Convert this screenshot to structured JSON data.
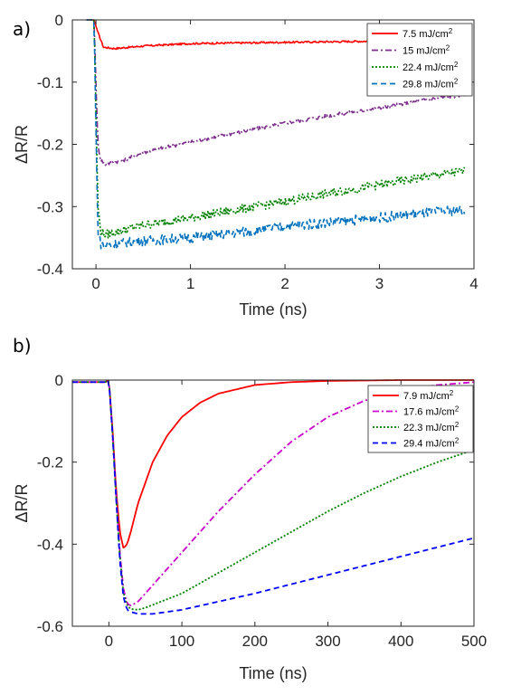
{
  "chart_data": [
    {
      "panel_label": "a)",
      "type": "line",
      "xlabel": "Time (ns)",
      "ylabel": "ΔR/R",
      "xlim": [
        -0.25,
        4
      ],
      "ylim": [
        -0.4,
        0
      ],
      "xticks": [
        0,
        1,
        2,
        3,
        4
      ],
      "yticks": [
        0,
        -0.1,
        -0.2,
        -0.3,
        -0.4
      ],
      "xtick_labels": [
        "0",
        "1",
        "2",
        "3",
        "4"
      ],
      "ytick_labels": [
        "0",
        "-0.1",
        "-0.2",
        "-0.3",
        "-0.4"
      ],
      "legend_position": "top-right",
      "series": [
        {
          "name": "7.5 mJ/cm",
          "name_sup": "2",
          "color": "#ff0000",
          "dash": "solid",
          "noise": 0.0015,
          "x": [
            -0.1,
            -0.02,
            0.02,
            0.08,
            0.2,
            0.5,
            1.0,
            2.0,
            3.0,
            3.9
          ],
          "y": [
            0.0,
            0.0,
            -0.02,
            -0.044,
            -0.046,
            -0.042,
            -0.038,
            -0.036,
            -0.034,
            -0.033
          ]
        },
        {
          "name": "15 mJ/cm",
          "name_sup": "2",
          "color": "#7e2f8e",
          "dash": "dashdot",
          "noise": 0.003,
          "x": [
            -0.1,
            -0.02,
            0.0,
            0.02,
            0.05,
            0.1,
            0.3,
            0.5,
            1.0,
            1.5,
            2.0,
            2.5,
            3.0,
            3.5,
            3.9
          ],
          "y": [
            0.0,
            0.0,
            -0.1,
            -0.2,
            -0.225,
            -0.232,
            -0.225,
            -0.213,
            -0.196,
            -0.181,
            -0.166,
            -0.153,
            -0.142,
            -0.128,
            -0.12
          ]
        },
        {
          "name": "22.4 mJ/cm",
          "name_sup": "2",
          "color": "#008000",
          "dash": "dotted",
          "noise": 0.007,
          "x": [
            -0.1,
            -0.02,
            0.0,
            0.02,
            0.05,
            0.1,
            0.5,
            1.0,
            1.5,
            2.0,
            2.5,
            3.0,
            3.5,
            3.9
          ],
          "y": [
            0.0,
            0.0,
            -0.15,
            -0.3,
            -0.34,
            -0.345,
            -0.33,
            -0.318,
            -0.305,
            -0.292,
            -0.278,
            -0.265,
            -0.252,
            -0.243
          ]
        },
        {
          "name": "29.8 mJ/cm",
          "name_sup": "2",
          "color": "#0072bd",
          "dash": "dashed",
          "noise": 0.008,
          "x": [
            -0.1,
            -0.02,
            0.0,
            0.02,
            0.05,
            0.1,
            0.5,
            1.0,
            1.5,
            2.0,
            2.5,
            3.0,
            3.5,
            3.9
          ],
          "y": [
            0.0,
            0.0,
            -0.18,
            -0.34,
            -0.36,
            -0.362,
            -0.355,
            -0.35,
            -0.342,
            -0.332,
            -0.325,
            -0.318,
            -0.31,
            -0.305
          ]
        }
      ]
    },
    {
      "panel_label": "b)",
      "type": "line",
      "xlabel": "Time (ns)",
      "ylabel": "ΔR/R",
      "xlim": [
        -50,
        500
      ],
      "ylim": [
        -0.6,
        0
      ],
      "xticks": [
        0,
        100,
        200,
        300,
        400,
        500
      ],
      "yticks": [
        0,
        -0.2,
        -0.4,
        -0.6
      ],
      "xtick_labels": [
        "0",
        "100",
        "200",
        "300",
        "400",
        "500"
      ],
      "ytick_labels": [
        "0",
        "-0.2",
        "-0.4",
        "-0.6"
      ],
      "legend_position": "top-right",
      "series": [
        {
          "name": "7.9 mJ/cm",
          "name_sup": "2",
          "color": "#ff0000",
          "dash": "solid",
          "noise": 0,
          "x": [
            -50,
            -5,
            0,
            5,
            10,
            15,
            20,
            25,
            30,
            40,
            60,
            80,
            100,
            125,
            150,
            200,
            250,
            300,
            400,
            500
          ],
          "y": [
            -0.005,
            -0.005,
            0.0,
            -0.12,
            -0.27,
            -0.37,
            -0.41,
            -0.4,
            -0.37,
            -0.3,
            -0.2,
            -0.135,
            -0.09,
            -0.055,
            -0.033,
            -0.012,
            -0.005,
            -0.002,
            0.0,
            0.0
          ]
        },
        {
          "name": "17.6 mJ/cm",
          "name_sup": "2",
          "color": "#cc00cc",
          "dash": "dashdot",
          "noise": 0,
          "x": [
            -50,
            -5,
            0,
            5,
            10,
            15,
            20,
            25,
            30,
            40,
            60,
            100,
            150,
            200,
            250,
            300,
            350,
            400,
            450,
            500
          ],
          "y": [
            -0.005,
            -0.005,
            0.0,
            -0.13,
            -0.28,
            -0.42,
            -0.51,
            -0.545,
            -0.55,
            -0.54,
            -0.5,
            -0.42,
            -0.32,
            -0.23,
            -0.15,
            -0.09,
            -0.05,
            -0.025,
            -0.012,
            -0.005
          ]
        },
        {
          "name": "22.3 mJ/cm",
          "name_sup": "2",
          "color": "#008000",
          "dash": "dotted",
          "noise": 0,
          "x": [
            -50,
            -5,
            0,
            5,
            10,
            15,
            20,
            25,
            30,
            40,
            50,
            100,
            150,
            200,
            250,
            300,
            350,
            400,
            450,
            500
          ],
          "y": [
            -0.005,
            -0.005,
            0.0,
            -0.13,
            -0.29,
            -0.43,
            -0.52,
            -0.55,
            -0.558,
            -0.56,
            -0.555,
            -0.52,
            -0.47,
            -0.42,
            -0.37,
            -0.32,
            -0.275,
            -0.235,
            -0.2,
            -0.17
          ]
        },
        {
          "name": "29.4 mJ/cm",
          "name_sup": "2",
          "color": "#0000ff",
          "dash": "dashed",
          "noise": 0,
          "x": [
            -50,
            -5,
            0,
            5,
            10,
            15,
            20,
            25,
            30,
            40,
            60,
            100,
            150,
            200,
            300,
            400,
            500
          ],
          "y": [
            -0.005,
            -0.005,
            0.0,
            -0.13,
            -0.29,
            -0.44,
            -0.53,
            -0.56,
            -0.565,
            -0.57,
            -0.57,
            -0.56,
            -0.54,
            -0.52,
            -0.475,
            -0.43,
            -0.385
          ]
        }
      ]
    }
  ]
}
